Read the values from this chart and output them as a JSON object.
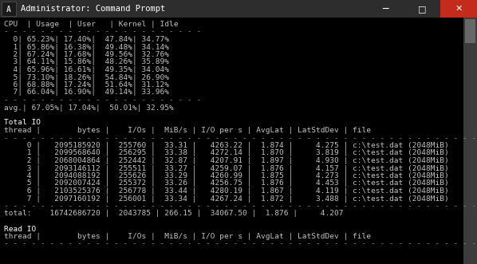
{
  "title": "Administrator: Command Prompt",
  "bg_color": "#000000",
  "title_bar_bg": "#2d2d2d",
  "text_color": "#c0c0c0",
  "content": [
    "CPU  | Usage  | User   | Kernel | Idle",
    "- - - - - - - - - - - - - - - - - - - - - -",
    "  0| 65.23%| 17.40%|  47.84%| 34.77%",
    "  1| 65.86%| 16.38%|  49.48%| 34.14%",
    "  2| 67.24%| 17.68%|  49.56%| 32.76%",
    "  3| 64.11%| 15.86%|  48.26%| 35.89%",
    "  4| 65.96%| 16.61%|  49.35%| 34.04%",
    "  5| 73.10%| 18.26%|  54.84%| 26.90%",
    "  6| 68.88%| 17.24%|  51.64%| 31.12%",
    "  7| 66.04%| 16.90%|  49.14%| 33.96%",
    "- - - - - - - - - - - - - - - - - - - - - -",
    "avg.| 67.05%| 17.04%|  50.01%| 32.95%",
    "",
    "Total IO",
    "thread |        bytes |    I/Os |  MiB/s | I/O per s | AvgLat | LatStdDev | file",
    "- - - - - - - - - - - - - - - - - - - - - - - - - - - - - - - - - - - - - - - - - - - - - - - - - - - - -",
    "     0 |   2095185920 |  255760 |  33.31 |   4263.22 |  1.874 |     4.275 | c:\\test.dat (2048MiB)",
    "     1 |   2099568640 |  256295 |  33.38 |   4272.14 |  1.870 |     3.819 | c:\\test.dat (2048MiB)",
    "     2 |   2068004864 |  252442 |  32.87 |   4207.91 |  1.897 |     4.930 | c:\\test.dat (2048MiB)",
    "     3 |   2093146112 |  255511 |  33.27 |   4259.07 |  1.876 |     4.157 | c:\\test.dat (2048MiB)",
    "     4 |   2094088192 |  255626 |  33.29 |   4260.99 |  1.875 |     4.273 | c:\\test.dat (2048MiB)",
    "     5 |   2092007424 |  255372 |  33.26 |   4256.75 |  1.876 |     4.453 | c:\\test.dat (2048MiB)",
    "     6 |   2103525376 |  256778 |  33.44 |   4280.19 |  1.867 |     4.119 | c:\\test.dat (2048MiB)",
    "     7 |   2097160192 |  256001 |  33.34 |   4267.24 |  1.872 |     3.488 | c:\\test.dat (2048MiB)",
    "- - - - - - - - - - - - - - - - - - - - - - - - - - - - - - - - - - - - - - - - - - - - - - - - - - - - -",
    "total:    16742686720 |  2043785 | 266.15 |  34067.50 |  1.876 |     4.207",
    "",
    "Read IO",
    "thread |        bytes |    I/Os |  MiB/s | I/O per s | AvgLat | LatStdDev | file",
    "- - - - - - - - - - - - - - - - - - - - - - - - - - - - - - - - - - - - - - - - - - - - - - - - - - - - -"
  ]
}
